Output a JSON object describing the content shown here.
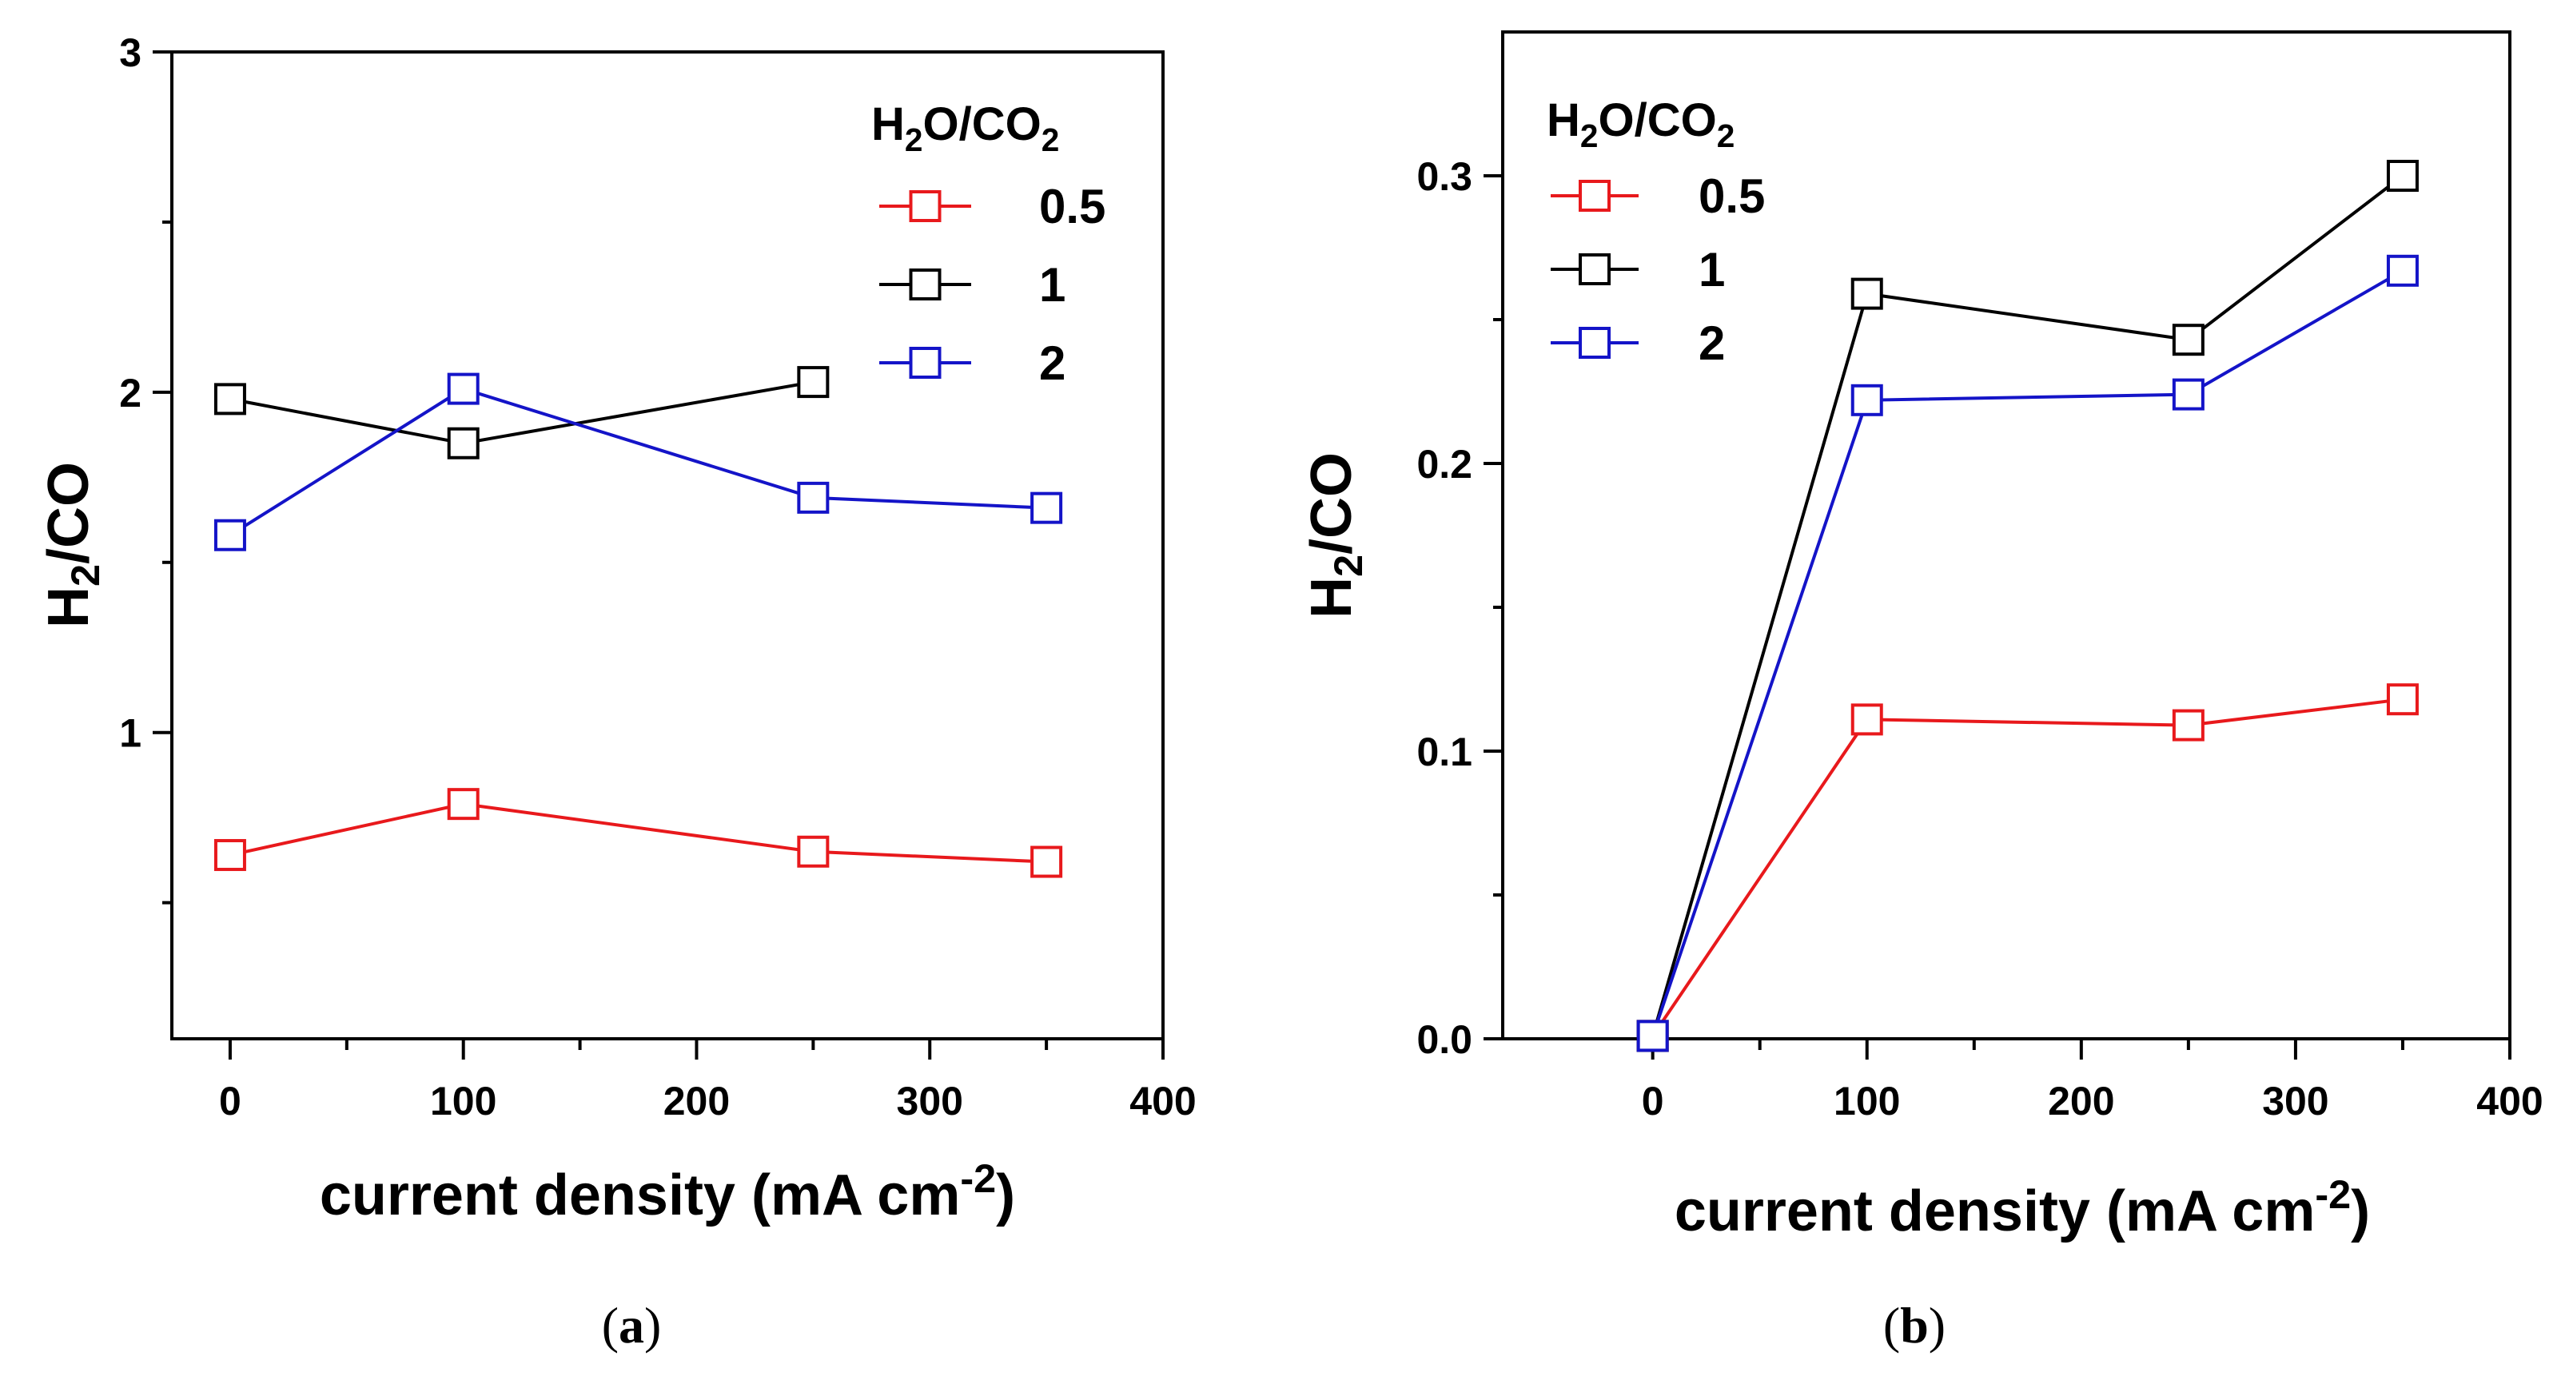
{
  "chart_data": [
    {
      "type": "line",
      "panel": "a",
      "caption_open": "(",
      "caption_letter": "a",
      "caption_close": ")",
      "ylabel": "H2/CO",
      "ylabel_main": "H",
      "ylabel_sub": "2",
      "ylabel_rest": "/CO",
      "xlabel": "current density (mA cm-2)",
      "xlabel_main": "current density (mA cm",
      "xlabel_sup": "-2",
      "xlabel_end": ")",
      "xlim": [
        -25,
        400
      ],
      "ylim": [
        0.1,
        3
      ],
      "xticks": [
        0,
        100,
        200,
        300,
        400
      ],
      "xtick_labels": [
        "0",
        "100",
        "200",
        "300",
        "400"
      ],
      "yticks": [
        1,
        2,
        3
      ],
      "ytick_labels": [
        "1",
        "2",
        "3"
      ],
      "legend_title": "H2O/CO2",
      "legend_title_parts": [
        "H",
        "2",
        "O/CO",
        "2"
      ],
      "legend_position": "top-right",
      "series": [
        {
          "name": "0.5",
          "color": "#e8191c",
          "x": [
            0,
            100,
            250,
            350
          ],
          "y": [
            0.64,
            0.79,
            0.65,
            0.62
          ]
        },
        {
          "name": "1",
          "color": "#000000",
          "x": [
            0,
            100,
            250
          ],
          "y": [
            1.98,
            1.85,
            2.03
          ]
        },
        {
          "name": "2",
          "color": "#1414c8",
          "x": [
            0,
            100,
            250,
            350
          ],
          "y": [
            1.58,
            2.01,
            1.69,
            1.66
          ]
        }
      ]
    },
    {
      "type": "line",
      "panel": "b",
      "caption_open": "(",
      "caption_letter": "b",
      "caption_close": ")",
      "ylabel": "H2/CO",
      "ylabel_main": "H",
      "ylabel_sub": "2",
      "ylabel_rest": "/CO",
      "xlabel": "current density (mA cm-2)",
      "xlabel_main": "current density (mA cm",
      "xlabel_sup": "-2",
      "xlabel_end": ")",
      "xlim": [
        -70,
        400
      ],
      "ylim": [
        0,
        0.35
      ],
      "xticks": [
        0,
        100,
        200,
        300,
        400
      ],
      "xtick_labels": [
        "0",
        "100",
        "200",
        "300",
        "400"
      ],
      "yticks": [
        0,
        0.1,
        0.2,
        0.3
      ],
      "ytick_labels": [
        "0.0",
        "0.1",
        "0.2",
        "0.3"
      ],
      "legend_title": "H2O/CO2",
      "legend_title_parts": [
        "H",
        "2",
        "O/CO",
        "2"
      ],
      "legend_position": "top-left",
      "series": [
        {
          "name": "0.5",
          "color": "#e8191c",
          "x": [
            0,
            100,
            250,
            350
          ],
          "y": [
            0.001,
            0.111,
            0.109,
            0.118
          ]
        },
        {
          "name": "1",
          "color": "#000000",
          "x": [
            0,
            100,
            250,
            350
          ],
          "y": [
            0.001,
            0.259,
            0.243,
            0.3
          ]
        },
        {
          "name": "2",
          "color": "#1414c8",
          "x": [
            0,
            100,
            250,
            350
          ],
          "y": [
            0.001,
            0.222,
            0.224,
            0.267
          ]
        }
      ]
    }
  ]
}
